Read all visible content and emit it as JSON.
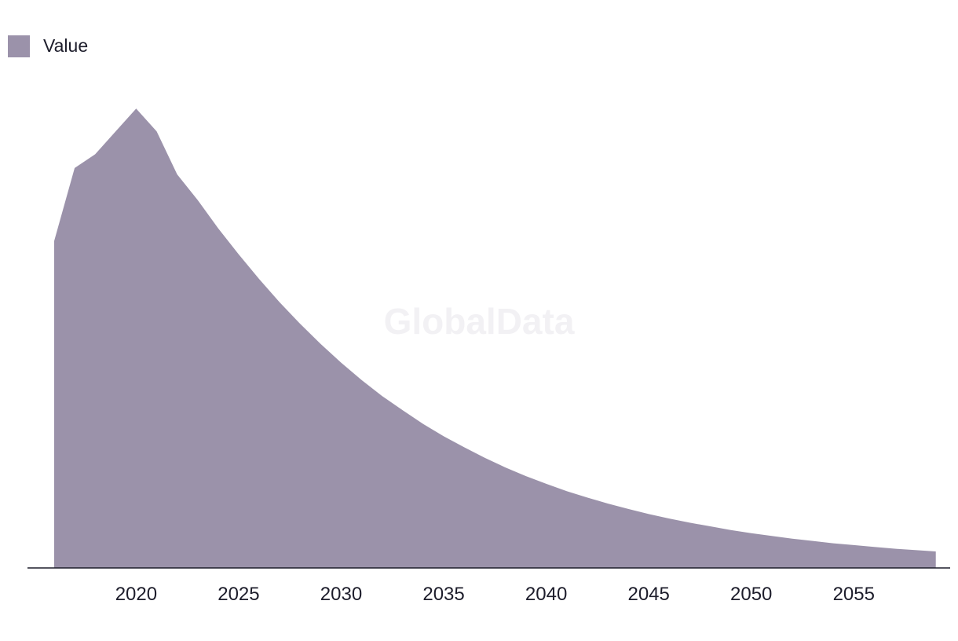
{
  "watermark": "GlobalData",
  "chart_data": {
    "type": "area",
    "legend": {
      "placement": "top-left",
      "entries": [
        "Value"
      ]
    },
    "series": [
      {
        "name": "Value",
        "color": "#9b92aa",
        "x": [
          2016,
          2017,
          2018,
          2019,
          2020,
          2021,
          2022,
          2023,
          2024,
          2025,
          2026,
          2027,
          2028,
          2029,
          2030,
          2031,
          2032,
          2033,
          2034,
          2035,
          2036,
          2037,
          2038,
          2039,
          2040,
          2041,
          2042,
          2043,
          2044,
          2045,
          2046,
          2047,
          2048,
          2049,
          2050,
          2051,
          2052,
          2053,
          2054,
          2055,
          2056,
          2057,
          2058,
          2059
        ],
        "values": [
          71.5,
          87.5,
          90.5,
          95.5,
          100.5,
          95.5,
          86.1,
          80.5,
          74.3,
          68.6,
          63.2,
          58.1,
          53.4,
          49.0,
          44.9,
          41.1,
          37.6,
          34.5,
          31.5,
          28.8,
          26.4,
          24.1,
          22.0,
          20.1,
          18.4,
          16.8,
          15.4,
          14.1,
          12.9,
          11.8,
          10.8,
          9.9,
          9.1,
          8.3,
          7.6,
          7.0,
          6.4,
          5.9,
          5.4,
          5.0,
          4.6,
          4.2,
          3.9,
          3.6
        ]
      }
    ],
    "xticks": [
      "2020",
      "2025",
      "2030",
      "2035",
      "2040",
      "2045",
      "2050",
      "2055"
    ],
    "xlim": [
      2014.7,
      2059.7
    ],
    "ylim": [
      0,
      105
    ],
    "grid": false,
    "title": "",
    "xlabel": "",
    "ylabel": ""
  }
}
